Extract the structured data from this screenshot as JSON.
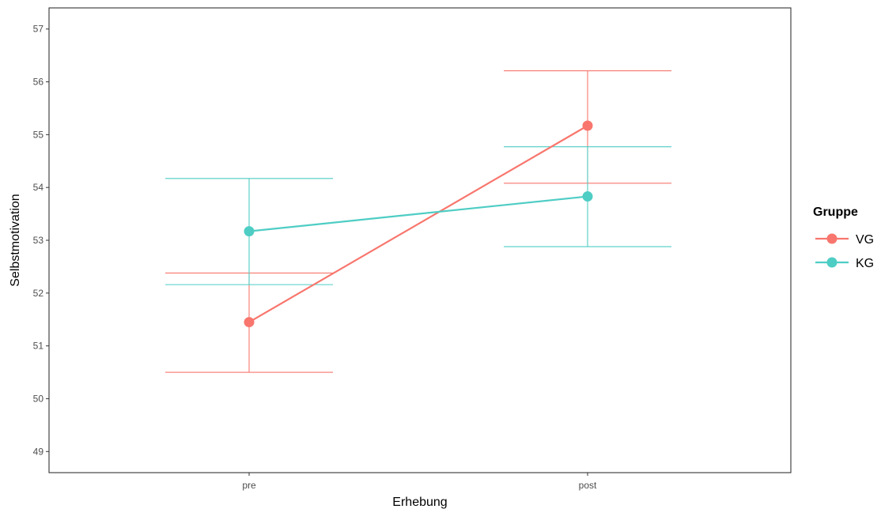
{
  "chart_data": {
    "type": "line",
    "xlabel": "Erhebung",
    "ylabel": "Selbstmotivation",
    "categories": [
      "pre",
      "post"
    ],
    "ylim": [
      48.6,
      57.4
    ],
    "yticks": [
      49,
      50,
      51,
      52,
      53,
      54,
      55,
      56,
      57
    ],
    "grid": false,
    "legend": {
      "title": "Gruppe",
      "position": "right"
    },
    "series": [
      {
        "name": "VG",
        "color": "#F8766D",
        "values": [
          51.45,
          55.17
        ],
        "error_low": [
          50.5,
          54.08
        ],
        "error_high": [
          52.38,
          56.21
        ]
      },
      {
        "name": "KG",
        "color": "#4ECDC4",
        "values": [
          53.17,
          53.83
        ],
        "error_low": [
          52.16,
          52.88
        ],
        "error_high": [
          54.17,
          54.77
        ]
      }
    ]
  }
}
